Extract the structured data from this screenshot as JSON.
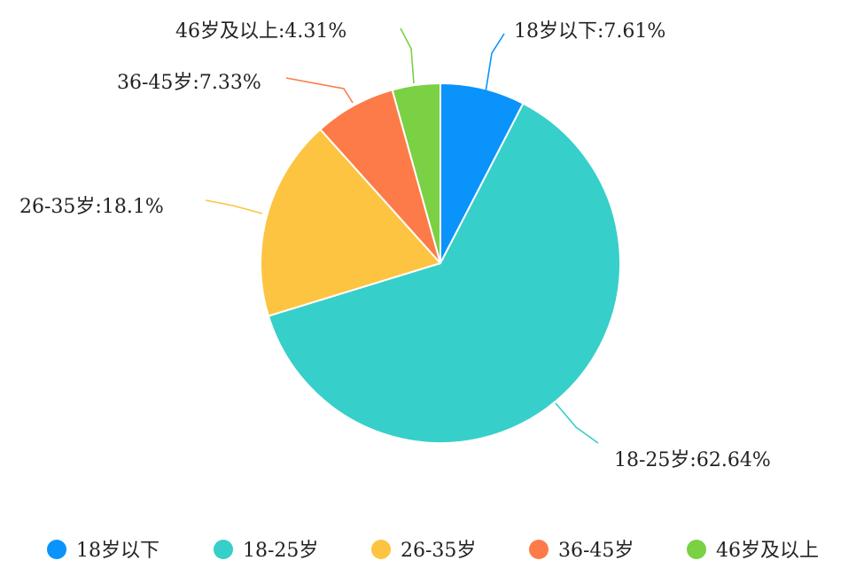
{
  "chart_data": {
    "type": "pie",
    "legend_position": "bottom",
    "slices": [
      {
        "name": "18岁以下",
        "value": 7.61,
        "label": "18岁以下:7.61%",
        "color": "#0a93fa"
      },
      {
        "name": "18-25岁",
        "value": 62.64,
        "label": "18-25岁:62.64%",
        "color": "#37cfc9"
      },
      {
        "name": "26-35岁",
        "value": 18.1,
        "label": "26-35岁:18.1%",
        "color": "#fdc441"
      },
      {
        "name": "36-45岁",
        "value": 7.33,
        "label": "36-45岁:7.33%",
        "color": "#fd7b48"
      },
      {
        "name": "46岁及以上",
        "value": 4.31,
        "label": "46岁及以上:4.31%",
        "color": "#79d143"
      }
    ]
  }
}
